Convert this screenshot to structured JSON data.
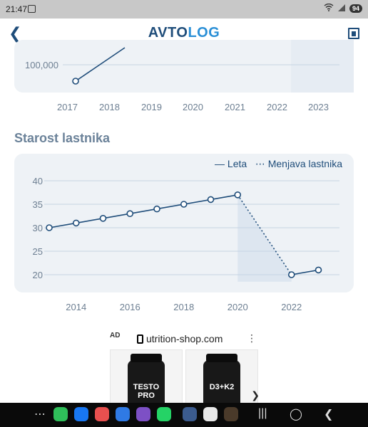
{
  "status": {
    "time": "21:47",
    "battery": "94"
  },
  "header": {
    "logo_part1": "AVTO",
    "logo_part2": "LOG"
  },
  "chart1": {
    "y_tick": "100,000",
    "x_ticks": [
      "2017",
      "2018",
      "2019",
      "2020",
      "2021",
      "2022",
      "2023"
    ]
  },
  "section": {
    "title": "Starost lastnika"
  },
  "legend": {
    "leta": "Leta",
    "menjava": "Menjava lastnika"
  },
  "chart_data": [
    {
      "type": "line",
      "x": [
        "2017",
        "2018",
        "2019",
        "2020",
        "2021",
        "2022",
        "2023"
      ],
      "y_ticks": [
        "100,000"
      ],
      "series": [
        {
          "values": [
            {
              "x": 2017,
              "y": 95000
            },
            {
              "x": 2018,
              "y": 140000
            }
          ]
        }
      ]
    },
    {
      "type": "line",
      "ylim": [
        20,
        40
      ],
      "y_ticks": [
        40,
        35,
        30,
        25,
        20
      ],
      "x_ticks": [
        "2014",
        "2016",
        "2018",
        "2020",
        "2022"
      ],
      "series": [
        {
          "name": "Leta",
          "points": [
            {
              "x": 2013,
              "y": 30
            },
            {
              "x": 2014,
              "y": 31
            },
            {
              "x": 2015,
              "y": 32
            },
            {
              "x": 2016,
              "y": 33
            },
            {
              "x": 2017,
              "y": 34
            },
            {
              "x": 2018,
              "y": 35
            },
            {
              "x": 2019,
              "y": 36
            },
            {
              "x": 2020,
              "y": 37
            },
            {
              "x": 2022,
              "y": 20
            },
            {
              "x": 2023,
              "y": 21
            }
          ]
        },
        {
          "name": "Menjava lastnika",
          "points": [
            {
              "x": 2020,
              "y": 37
            },
            {
              "x": 2022,
              "y": 20
            }
          ]
        }
      ],
      "colors": {
        "line": "#1f4d7a",
        "grid": "#c5d4e3",
        "shade": "#dde6f0"
      }
    }
  ],
  "ad": {
    "badge": "AD",
    "domain": "utrition-shop.com",
    "products": [
      {
        "label": "TESTO PRO"
      },
      {
        "label": "D3+K2"
      }
    ]
  }
}
